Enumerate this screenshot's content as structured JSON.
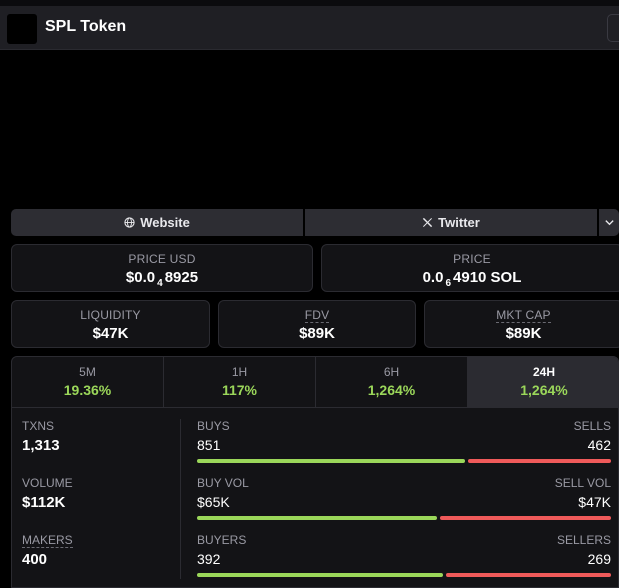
{
  "header": {
    "token_name": "SPL Token"
  },
  "links": {
    "website_label": "Website",
    "website_icon": "globe-icon",
    "twitter_label": "Twitter",
    "twitter_icon": "x-logo-icon",
    "more_icon": "chevron-down-icon"
  },
  "price_usd": {
    "label": "PRICE USD",
    "prefix": "$0.0",
    "zeros_sub": "4",
    "suffix": "8925"
  },
  "price_sol": {
    "label": "PRICE",
    "prefix": "0.0",
    "zeros_sub": "6",
    "suffix": "4910 SOL"
  },
  "liquidity": {
    "label": "LIQUIDITY",
    "value": "$47K"
  },
  "fdv": {
    "label": "FDV",
    "value": "$89K"
  },
  "mkt_cap": {
    "label": "MKT CAP",
    "value": "$89K"
  },
  "timeframes": [
    {
      "label": "5M",
      "value": "19.36%"
    },
    {
      "label": "1H",
      "value": "117%"
    },
    {
      "label": "6H",
      "value": "1,264%"
    },
    {
      "label": "24H",
      "value": "1,264%",
      "active": true
    }
  ],
  "metrics": {
    "txns": {
      "label": "TXNS",
      "value": "1,313"
    },
    "volume": {
      "label": "VOLUME",
      "value": "$112K"
    },
    "makers": {
      "label": "MAKERS",
      "value": "400"
    }
  },
  "breakdown": {
    "buys": {
      "left_label": "BUYS",
      "left_value": "851",
      "right_label": "SELLS",
      "right_value": "462",
      "buy_fraction": 0.648
    },
    "vol": {
      "left_label": "BUY VOL",
      "left_value": "$65K",
      "right_label": "SELL VOL",
      "right_value": "$47K",
      "buy_fraction": 0.58
    },
    "buyers": {
      "left_label": "BUYERS",
      "left_value": "392",
      "right_label": "SELLERS",
      "right_value": "269",
      "buy_fraction": 0.593
    }
  },
  "colors": {
    "positive": "#9bd75a",
    "negative": "#ef5a5a",
    "card_bg": "#131316"
  }
}
